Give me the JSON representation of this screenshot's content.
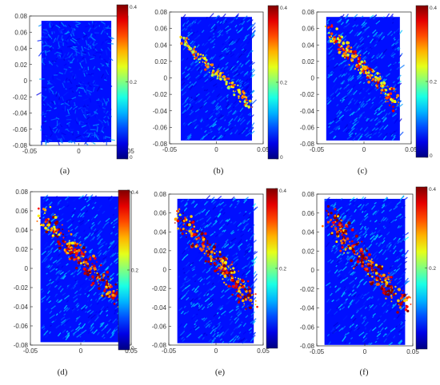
{
  "chart_data": [
    {
      "type": "heatmap",
      "label": "(a)",
      "xlim": [
        -0.05,
        0.05
      ],
      "ylim": [
        -0.08,
        0.08
      ],
      "xticks": [
        "-0.05",
        "0",
        "0.05"
      ],
      "yticks": [
        "0.08",
        "0.06",
        "0.04",
        "0.02",
        "0",
        "-0.02",
        "-0.04",
        "-0.06",
        "-0.08"
      ],
      "colorbar": {
        "min": 0,
        "max": 0.4,
        "ticks": [
          "0.4",
          "0.2",
          "0"
        ]
      },
      "region": {
        "x": [
          -0.038,
          0.033
        ],
        "y": [
          -0.076,
          0.074
        ]
      },
      "band": null
    },
    {
      "type": "heatmap",
      "label": "(b)",
      "xlim": [
        -0.05,
        0.05
      ],
      "ylim": [
        -0.08,
        0.08
      ],
      "xticks": [
        "-0.05",
        "0",
        "0.05"
      ],
      "yticks": [
        "0.08",
        "0.06",
        "0.04",
        "0.02",
        "0",
        "-0.02",
        "-0.04",
        "-0.06",
        "-0.08"
      ],
      "colorbar": {
        "min": 0,
        "max": 0.4,
        "ticks": [
          "0.4",
          "0.2",
          "0"
        ]
      },
      "region": {
        "x": [
          -0.038,
          0.038
        ],
        "y": [
          -0.076,
          0.074
        ]
      },
      "band": {
        "from": [
          -0.036,
          0.048
        ],
        "to": [
          0.037,
          -0.036
        ],
        "strength": 0.3,
        "width": 0.004
      }
    },
    {
      "type": "heatmap",
      "label": "(c)",
      "xlim": [
        -0.05,
        0.05
      ],
      "ylim": [
        -0.08,
        0.08
      ],
      "xticks": [
        "-0.05",
        "0",
        "0.05"
      ],
      "yticks": [
        "0.08",
        "0.06",
        "0.04",
        "0.02",
        "0",
        "-0.02",
        "-0.04",
        "-0.06",
        "-0.08"
      ],
      "colorbar": {
        "min": 0,
        "max": 0.4,
        "ticks": [
          "0.4",
          "0.2",
          "0"
        ]
      },
      "region": {
        "x": [
          -0.04,
          0.038
        ],
        "y": [
          -0.076,
          0.074
        ]
      },
      "band": {
        "from": [
          -0.036,
          0.058
        ],
        "to": [
          0.037,
          -0.036
        ],
        "strength": 0.55,
        "width": 0.006
      }
    },
    {
      "type": "heatmap",
      "label": "(d)",
      "xlim": [
        -0.05,
        0.05
      ],
      "ylim": [
        -0.08,
        0.08
      ],
      "xticks": [
        "-0.05",
        "0",
        "0.05"
      ],
      "yticks": [
        "0.08",
        "0.06",
        "0.04",
        "0.02",
        "0",
        "-0.02",
        "-0.04",
        "-0.06",
        "-0.08"
      ],
      "colorbar": {
        "min": 0,
        "max": 0.4,
        "ticks": [
          "0.4",
          "0.2",
          "0"
        ]
      },
      "region": {
        "x": [
          -0.04,
          0.04
        ],
        "y": [
          -0.077,
          0.075
        ]
      },
      "band": {
        "from": [
          -0.037,
          0.057
        ],
        "to": [
          0.038,
          -0.037
        ],
        "strength": 0.8,
        "width": 0.008
      }
    },
    {
      "type": "heatmap",
      "label": "(e)",
      "xlim": [
        -0.05,
        0.05
      ],
      "ylim": [
        -0.08,
        0.08
      ],
      "xticks": [
        "-0.05",
        "0",
        "0.05"
      ],
      "yticks": [
        "0.08",
        "0.06",
        "0.04",
        "0.02",
        "0",
        "-0.02",
        "-0.04",
        "-0.06",
        "-0.08"
      ],
      "colorbar": {
        "min": 0,
        "max": 0.4,
        "ticks": [
          "0.4",
          "0.2"
        ]
      },
      "region": {
        "x": [
          -0.041,
          0.04
        ],
        "y": [
          -0.078,
          0.075
        ]
      },
      "band": {
        "from": [
          -0.038,
          0.058
        ],
        "to": [
          0.038,
          -0.038
        ],
        "strength": 0.85,
        "width": 0.009
      }
    },
    {
      "type": "heatmap",
      "label": "(f)",
      "xlim": [
        -0.05,
        0.05
      ],
      "ylim": [
        -0.08,
        0.08
      ],
      "xticks": [
        "-0.05",
        "0",
        "0.05"
      ],
      "yticks": [
        "0.08",
        "0.06",
        "0.04",
        "0.02",
        "0",
        "-0.02",
        "-0.04",
        "-0.06",
        "-0.08"
      ],
      "colorbar": {
        "min": 0,
        "max": 0.4,
        "ticks": [
          "0.4",
          "0.2"
        ]
      },
      "region": {
        "x": [
          -0.042,
          0.042
        ],
        "y": [
          -0.079,
          0.075
        ]
      },
      "band": {
        "from": [
          -0.039,
          0.058
        ],
        "to": [
          0.039,
          -0.038
        ],
        "strength": 0.95,
        "width": 0.01
      }
    }
  ]
}
